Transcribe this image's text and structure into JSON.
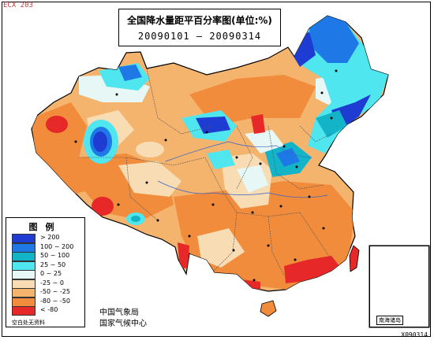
{
  "map": {
    "corner_code": "ECX 203",
    "title": "全国降水量距平百分率图(单位:%)",
    "date_range": "20090101 — 20090314",
    "legend": {
      "title": "图例",
      "items": [
        {
          "label": "> 200",
          "color": "#1e3cd2"
        },
        {
          "label": "100 ~ 200",
          "color": "#1e78e6"
        },
        {
          "label": "50 ~ 100",
          "color": "#14b4c8"
        },
        {
          "label": "25 ~ 50",
          "color": "#50e6f0"
        },
        {
          "label": "0 ~ 25",
          "color": "#e6f7f5"
        },
        {
          "label": "-25 ~ 0",
          "color": "#f8dcb4"
        },
        {
          "label": "-50 ~ -25",
          "color": "#f5b46e"
        },
        {
          "label": "-80 ~ -50",
          "color": "#f08c3c"
        },
        {
          "label": "< -80",
          "color": "#e62828"
        }
      ],
      "note": "空白处无资料"
    },
    "agency": {
      "line1": "中国气象局",
      "line2": "国家气候中心"
    },
    "inset_label": "南海诸岛",
    "footer_code": "X090314"
  }
}
